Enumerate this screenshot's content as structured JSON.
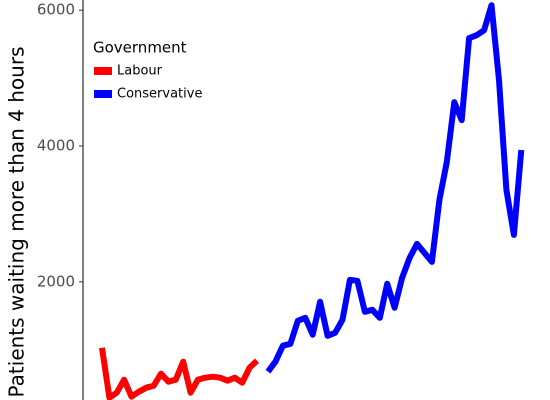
{
  "chart_data": {
    "type": "line",
    "y_label": "Patients waiting more than 4 hours",
    "legend_title": "Government",
    "legend_position": "upper left",
    "grid": false,
    "ylim": [
      260,
      6150
    ],
    "yticks": [
      2000,
      4000,
      6000
    ],
    "series": [
      {
        "name": "Labour",
        "color": "#ff0000",
        "values": [
          1029,
          294,
          368,
          559,
          309,
          382,
          441,
          471,
          647,
          529,
          559,
          824,
          368,
          559,
          588,
          603,
          588,
          544,
          588,
          515,
          735,
          838
        ]
      },
      {
        "name": "Conservative",
        "color": "#0000ff",
        "values": [
          676,
          824,
          1059,
          1088,
          1426,
          1471,
          1221,
          1706,
          1206,
          1250,
          1441,
          2029,
          2015,
          1559,
          1588,
          1471,
          1971,
          1618,
          2059,
          2353,
          2559,
          2426,
          2294,
          3206,
          3765,
          4647,
          4382,
          5588,
          5632,
          5706,
          6074,
          4971,
          3353,
          2691,
          3941
        ]
      }
    ]
  }
}
